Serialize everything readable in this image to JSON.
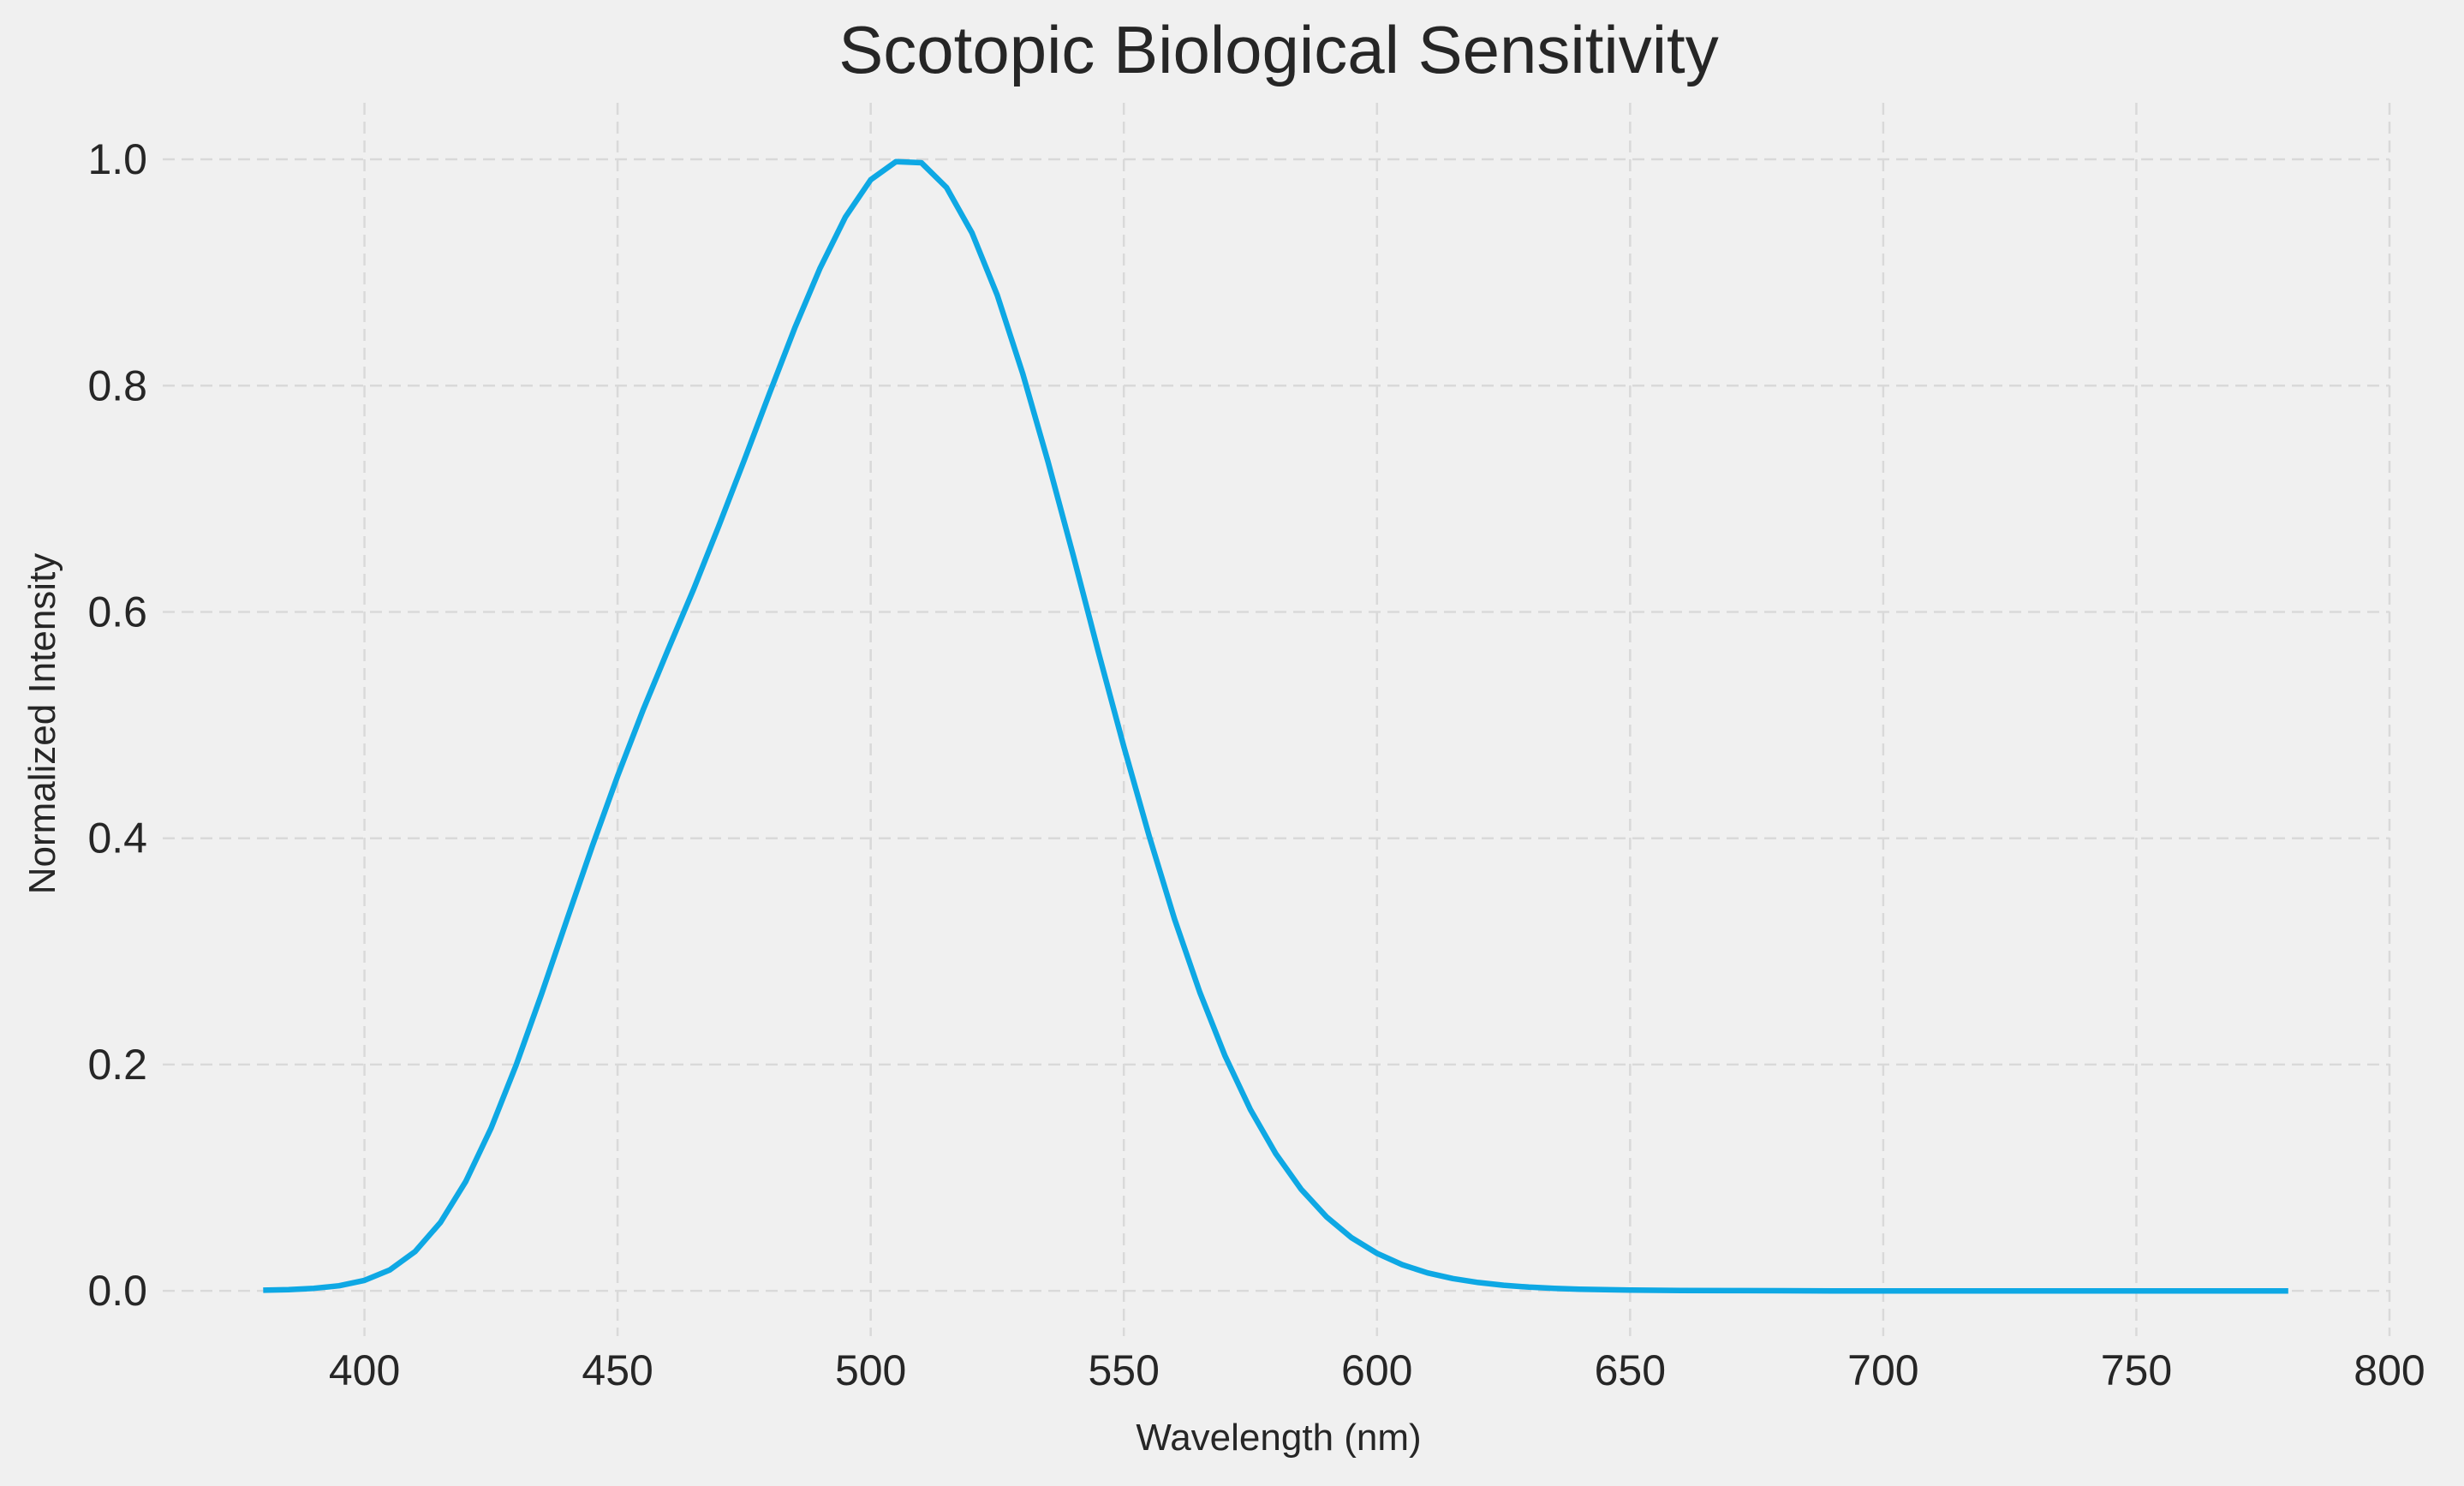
{
  "chart_data": {
    "type": "line",
    "title": "Scotopic Biological Sensitivity",
    "xlabel": "Wavelength (nm)",
    "ylabel": "Normalized Intensity",
    "xlim": [
      350,
      800
    ],
    "ylim": [
      -0.04,
      1.05
    ],
    "xticks": [
      400,
      450,
      500,
      550,
      600,
      650,
      700,
      750,
      800
    ],
    "yticks": [
      0.0,
      0.2,
      0.4,
      0.6,
      0.8,
      1.0
    ],
    "xtick_labels": [
      "400",
      "450",
      "500",
      "550",
      "600",
      "650",
      "700",
      "750",
      "800"
    ],
    "ytick_labels": [
      "0.0",
      "0.2",
      "0.4",
      "0.6",
      "0.8",
      "1.0"
    ],
    "grid": true,
    "legend": "none",
    "colors": {
      "background": "#f0f0f0",
      "grid": "#d9d9d9",
      "text": "#262626",
      "line": "#0ea8e4"
    },
    "series": [
      {
        "color": "#0ea8e4",
        "x": [
          380,
          385,
          390,
          395,
          400,
          405,
          410,
          415,
          420,
          425,
          430,
          435,
          440,
          445,
          450,
          455,
          460,
          465,
          470,
          475,
          480,
          485,
          490,
          495,
          500,
          505,
          510,
          515,
          520,
          525,
          530,
          535,
          540,
          545,
          550,
          555,
          560,
          565,
          570,
          575,
          580,
          585,
          590,
          595,
          600,
          605,
          610,
          615,
          620,
          625,
          630,
          635,
          640,
          645,
          650,
          660,
          670,
          680,
          690,
          700,
          720,
          740,
          760,
          780
        ],
        "y": [
          0.0006,
          0.0011,
          0.0022,
          0.0045,
          0.0093,
          0.0185,
          0.0348,
          0.0604,
          0.0966,
          0.1436,
          0.2,
          0.2625,
          0.3281,
          0.3931,
          0.455,
          0.513,
          0.567,
          0.62,
          0.676,
          0.734,
          0.793,
          0.851,
          0.904,
          0.949,
          0.982,
          0.998,
          0.997,
          0.975,
          0.935,
          0.88,
          0.811,
          0.733,
          0.65,
          0.564,
          0.481,
          0.402,
          0.3288,
          0.2639,
          0.2076,
          0.1602,
          0.1212,
          0.0899,
          0.0655,
          0.0469,
          0.0332,
          0.0231,
          0.0159,
          0.0109,
          0.0074,
          0.005,
          0.0033,
          0.0022,
          0.0015,
          0.001,
          0.0007,
          0.0003,
          0.0002,
          0.0001,
          0.0,
          0.0,
          0.0,
          0.0,
          0.0,
          0.0
        ]
      }
    ]
  }
}
